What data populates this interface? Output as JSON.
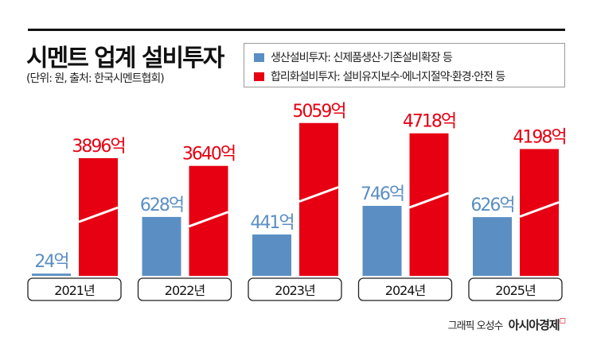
{
  "header": {
    "title": "시멘트 업계 설비투자",
    "subtitle": "(단위: 원, 출처: 한국시멘트협회)"
  },
  "credit": {
    "text": "그래픽 오성수",
    "brand": "아시아경제"
  },
  "chart_data": {
    "type": "bar",
    "title": "시멘트 업계 설비투자",
    "unit": "억",
    "categories": [
      "2021년",
      "2022년",
      "2023년",
      "2024년",
      "2025년"
    ],
    "series": [
      {
        "name": "생산설비투자: 신제품생산·기존설비확장 등",
        "color": "#5b8fc4",
        "values": [
          24,
          628,
          441,
          746,
          626
        ],
        "labels": [
          "24억",
          "628억",
          "441억",
          "746억",
          "626억"
        ]
      },
      {
        "name": "합리화설비투자: 설비유지보수·에너지절약·환경·안전 등",
        "color": "#e60012",
        "values": [
          3896,
          3640,
          5059,
          4718,
          4198
        ],
        "labels": [
          "3896억",
          "3640억",
          "5059억",
          "4718억",
          "4198억"
        ]
      }
    ],
    "axis_break": true,
    "legend": "top-right",
    "grid": false
  }
}
